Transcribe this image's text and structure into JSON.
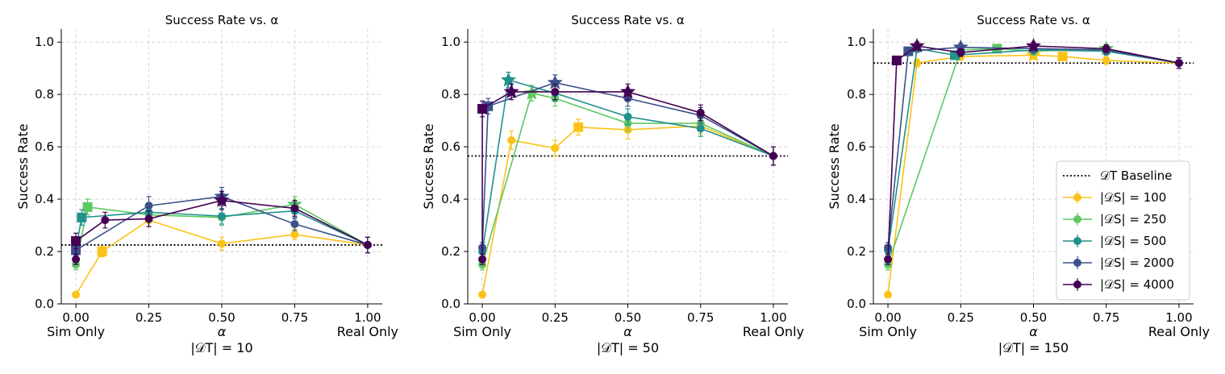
{
  "chart_data": [
    {
      "type": "line",
      "title": "Success Rate vs. α",
      "xlabel": "α",
      "sublabel": "|𝒟T| = 10",
      "ylabel": "Success Rate",
      "xlim": [
        -0.05,
        1.05
      ],
      "ylim": [
        0.0,
        1.05
      ],
      "xticks": [
        0.0,
        0.25,
        0.5,
        0.75,
        1.0
      ],
      "xtick_labels": [
        "0.00",
        "0.25",
        "0.50",
        "0.75",
        "1.00"
      ],
      "yticks": [
        0.0,
        0.2,
        0.4,
        0.6,
        0.8,
        1.0
      ],
      "ytick_labels": [
        "0.0",
        "0.2",
        "0.4",
        "0.6",
        "0.8",
        "1.0"
      ],
      "x_end_labels": [
        "Sim Only",
        "Real Only"
      ],
      "baseline": 0.225,
      "series": [
        {
          "name": "|𝒟S| = 100",
          "color": "#fbc318",
          "points": [
            {
              "x": 0.0,
              "y": 0.035,
              "e": 0.01,
              "m": "o"
            },
            {
              "x": 0.09,
              "y": 0.2,
              "e": 0.02,
              "m": "s"
            },
            {
              "x": 0.25,
              "y": 0.32,
              "e": 0.025,
              "m": "o"
            },
            {
              "x": 0.5,
              "y": 0.23,
              "e": 0.025,
              "m": "o"
            },
            {
              "x": 0.75,
              "y": 0.265,
              "e": 0.02,
              "m": "o"
            },
            {
              "x": 1.0,
              "y": 0.225,
              "e": 0.03,
              "m": "o"
            }
          ]
        },
        {
          "name": "|𝒟S| = 250",
          "color": "#5ec962",
          "points": [
            {
              "x": 0.0,
              "y": 0.15,
              "e": 0.02,
              "m": "o"
            },
            {
              "x": 0.04,
              "y": 0.37,
              "e": 0.03,
              "m": "s"
            },
            {
              "x": 0.25,
              "y": 0.34,
              "e": 0.03,
              "m": "o"
            },
            {
              "x": 0.5,
              "y": 0.33,
              "e": 0.03,
              "m": "o"
            },
            {
              "x": 0.75,
              "y": 0.38,
              "e": 0.03,
              "m": "*"
            },
            {
              "x": 1.0,
              "y": 0.225,
              "e": 0.03,
              "m": "o"
            }
          ]
        },
        {
          "name": "|𝒟S| = 500",
          "color": "#21918c",
          "points": [
            {
              "x": 0.0,
              "y": 0.21,
              "e": 0.02,
              "m": "o"
            },
            {
              "x": 0.02,
              "y": 0.33,
              "e": 0.03,
              "m": "s"
            },
            {
              "x": 0.25,
              "y": 0.35,
              "e": 0.03,
              "m": "o"
            },
            {
              "x": 0.5,
              "y": 0.335,
              "e": 0.03,
              "m": "o"
            },
            {
              "x": 0.75,
              "y": 0.355,
              "e": 0.03,
              "m": "o"
            },
            {
              "x": 1.0,
              "y": 0.225,
              "e": 0.03,
              "m": "o"
            }
          ]
        },
        {
          "name": "|𝒟S| = 2000",
          "color": "#3b528b",
          "points": [
            {
              "x": 0.0,
              "y": 0.205,
              "e": 0.02,
              "m": "s"
            },
            {
              "x": 0.25,
              "y": 0.375,
              "e": 0.035,
              "m": "o"
            },
            {
              "x": 0.5,
              "y": 0.41,
              "e": 0.035,
              "m": "*"
            },
            {
              "x": 0.75,
              "y": 0.305,
              "e": 0.025,
              "m": "o"
            },
            {
              "x": 1.0,
              "y": 0.225,
              "e": 0.03,
              "m": "o"
            }
          ]
        },
        {
          "name": "|𝒟S| = 4000",
          "color": "#440154",
          "points": [
            {
              "x": 0.0,
              "y": 0.17,
              "e": 0.02,
              "m": "o"
            },
            {
              "x": 0.0,
              "y": 0.24,
              "e": 0.03,
              "m": "s"
            },
            {
              "x": 0.1,
              "y": 0.32,
              "e": 0.03,
              "m": "o"
            },
            {
              "x": 0.25,
              "y": 0.325,
              "e": 0.03,
              "m": "o"
            },
            {
              "x": 0.5,
              "y": 0.395,
              "e": 0.035,
              "m": "*"
            },
            {
              "x": 0.75,
              "y": 0.365,
              "e": 0.03,
              "m": "o"
            },
            {
              "x": 1.0,
              "y": 0.225,
              "e": 0.03,
              "m": "o"
            }
          ]
        }
      ]
    },
    {
      "type": "line",
      "title": "Success Rate vs. α",
      "xlabel": "α",
      "sublabel": "|𝒟T| = 50",
      "ylabel": "Success Rate",
      "xlim": [
        -0.05,
        1.05
      ],
      "ylim": [
        0.0,
        1.05
      ],
      "xticks": [
        0.0,
        0.25,
        0.5,
        0.75,
        1.0
      ],
      "xtick_labels": [
        "0.00",
        "0.25",
        "0.50",
        "0.75",
        "1.00"
      ],
      "yticks": [
        0.0,
        0.2,
        0.4,
        0.6,
        0.8,
        1.0
      ],
      "ytick_labels": [
        "0.0",
        "0.2",
        "0.4",
        "0.6",
        "0.8",
        "1.0"
      ],
      "x_end_labels": [
        "Sim Only",
        "Real Only"
      ],
      "baseline": 0.565,
      "series": [
        {
          "name": "|𝒟S| = 100",
          "color": "#fbc318",
          "points": [
            {
              "x": 0.0,
              "y": 0.035,
              "e": 0.01,
              "m": "o"
            },
            {
              "x": 0.1,
              "y": 0.625,
              "e": 0.035,
              "m": "o"
            },
            {
              "x": 0.25,
              "y": 0.595,
              "e": 0.03,
              "m": "o"
            },
            {
              "x": 0.33,
              "y": 0.675,
              "e": 0.03,
              "m": "s"
            },
            {
              "x": 0.5,
              "y": 0.665,
              "e": 0.035,
              "m": "o"
            },
            {
              "x": 0.75,
              "y": 0.68,
              "e": 0.03,
              "m": "o"
            },
            {
              "x": 1.0,
              "y": 0.565,
              "e": 0.035,
              "m": "o"
            }
          ]
        },
        {
          "name": "|𝒟S| = 250",
          "color": "#5ec962",
          "points": [
            {
              "x": 0.0,
              "y": 0.15,
              "e": 0.02,
              "m": "o"
            },
            {
              "x": 0.17,
              "y": 0.805,
              "e": 0.03,
              "m": "*"
            },
            {
              "x": 0.25,
              "y": 0.785,
              "e": 0.03,
              "m": "o"
            },
            {
              "x": 0.5,
              "y": 0.69,
              "e": 0.03,
              "m": "o"
            },
            {
              "x": 0.75,
              "y": 0.69,
              "e": 0.03,
              "m": "o"
            },
            {
              "x": 1.0,
              "y": 0.565,
              "e": 0.035,
              "m": "o"
            }
          ]
        },
        {
          "name": "|𝒟S| = 500",
          "color": "#21918c",
          "points": [
            {
              "x": 0.0,
              "y": 0.2,
              "e": 0.02,
              "m": "o"
            },
            {
              "x": 0.09,
              "y": 0.855,
              "e": 0.03,
              "m": "*"
            },
            {
              "x": 0.25,
              "y": 0.805,
              "e": 0.03,
              "m": "o"
            },
            {
              "x": 0.5,
              "y": 0.715,
              "e": 0.03,
              "m": "o"
            },
            {
              "x": 0.75,
              "y": 0.67,
              "e": 0.03,
              "m": "o"
            },
            {
              "x": 1.0,
              "y": 0.565,
              "e": 0.035,
              "m": "o"
            }
          ]
        },
        {
          "name": "|𝒟S| = 2000",
          "color": "#3b528b",
          "points": [
            {
              "x": 0.0,
              "y": 0.215,
              "e": 0.02,
              "m": "o"
            },
            {
              "x": 0.02,
              "y": 0.755,
              "e": 0.03,
              "m": "s"
            },
            {
              "x": 0.25,
              "y": 0.845,
              "e": 0.03,
              "m": "*"
            },
            {
              "x": 0.5,
              "y": 0.785,
              "e": 0.03,
              "m": "o"
            },
            {
              "x": 0.75,
              "y": 0.72,
              "e": 0.03,
              "m": "o"
            },
            {
              "x": 1.0,
              "y": 0.565,
              "e": 0.035,
              "m": "o"
            }
          ]
        },
        {
          "name": "|𝒟S| = 4000",
          "color": "#440154",
          "points": [
            {
              "x": 0.0,
              "y": 0.17,
              "e": 0.02,
              "m": "o"
            },
            {
              "x": 0.0,
              "y": 0.745,
              "e": 0.03,
              "m": "s"
            },
            {
              "x": 0.1,
              "y": 0.81,
              "e": 0.03,
              "m": "*"
            },
            {
              "x": 0.25,
              "y": 0.81,
              "e": 0.03,
              "m": "o"
            },
            {
              "x": 0.5,
              "y": 0.81,
              "e": 0.03,
              "m": "*"
            },
            {
              "x": 0.75,
              "y": 0.73,
              "e": 0.03,
              "m": "o"
            },
            {
              "x": 1.0,
              "y": 0.565,
              "e": 0.035,
              "m": "o"
            }
          ]
        }
      ]
    },
    {
      "type": "line",
      "title": "Success Rate vs. α",
      "xlabel": "α",
      "sublabel": "|𝒟T| = 150",
      "ylabel": "Success Rate",
      "xlim": [
        -0.05,
        1.05
      ],
      "ylim": [
        0.0,
        1.05
      ],
      "xticks": [
        0.0,
        0.25,
        0.5,
        0.75,
        1.0
      ],
      "xtick_labels": [
        "0.00",
        "0.25",
        "0.50",
        "0.75",
        "1.00"
      ],
      "yticks": [
        0.0,
        0.2,
        0.4,
        0.6,
        0.8,
        1.0
      ],
      "ytick_labels": [
        "0.0",
        "0.2",
        "0.4",
        "0.6",
        "0.8",
        "1.0"
      ],
      "x_end_labels": [
        "Sim Only",
        "Real Only"
      ],
      "baseline": 0.92,
      "legend_placement": "lower-right",
      "legend_baseline_label": "𝒟T Baseline",
      "series": [
        {
          "name": "|𝒟S| = 100",
          "color": "#fbc318",
          "points": [
            {
              "x": 0.0,
              "y": 0.035,
              "e": 0.01,
              "m": "o"
            },
            {
              "x": 0.1,
              "y": 0.92,
              "e": 0.015,
              "m": "o"
            },
            {
              "x": 0.25,
              "y": 0.945,
              "e": 0.015,
              "m": "o"
            },
            {
              "x": 0.5,
              "y": 0.95,
              "e": 0.015,
              "m": "*"
            },
            {
              "x": 0.6,
              "y": 0.945,
              "e": 0.015,
              "m": "s"
            },
            {
              "x": 0.75,
              "y": 0.93,
              "e": 0.015,
              "m": "o"
            },
            {
              "x": 1.0,
              "y": 0.92,
              "e": 0.02,
              "m": "o"
            }
          ]
        },
        {
          "name": "|𝒟S| = 250",
          "color": "#5ec962",
          "points": [
            {
              "x": 0.0,
              "y": 0.15,
              "e": 0.02,
              "m": "o"
            },
            {
              "x": 0.25,
              "y": 0.97,
              "e": 0.015,
              "m": "o"
            },
            {
              "x": 0.375,
              "y": 0.975,
              "e": 0.015,
              "m": "s"
            },
            {
              "x": 0.5,
              "y": 0.965,
              "e": 0.015,
              "m": "o"
            },
            {
              "x": 0.75,
              "y": 0.975,
              "e": 0.015,
              "m": "*"
            },
            {
              "x": 1.0,
              "y": 0.92,
              "e": 0.02,
              "m": "o"
            }
          ]
        },
        {
          "name": "|𝒟S| = 500",
          "color": "#21918c",
          "points": [
            {
              "x": 0.0,
              "y": 0.205,
              "e": 0.02,
              "m": "o"
            },
            {
              "x": 0.1,
              "y": 0.975,
              "e": 0.015,
              "m": "o"
            },
            {
              "x": 0.23,
              "y": 0.95,
              "e": 0.015,
              "m": "s"
            },
            {
              "x": 0.5,
              "y": 0.97,
              "e": 0.015,
              "m": "o"
            },
            {
              "x": 0.75,
              "y": 0.965,
              "e": 0.015,
              "m": "o"
            },
            {
              "x": 1.0,
              "y": 0.92,
              "e": 0.02,
              "m": "o"
            }
          ]
        },
        {
          "name": "|𝒟S| = 2000",
          "color": "#3b528b",
          "points": [
            {
              "x": 0.0,
              "y": 0.215,
              "e": 0.02,
              "m": "o"
            },
            {
              "x": 0.07,
              "y": 0.965,
              "e": 0.015,
              "m": "s"
            },
            {
              "x": 0.25,
              "y": 0.98,
              "e": 0.015,
              "m": "*"
            },
            {
              "x": 0.5,
              "y": 0.975,
              "e": 0.015,
              "m": "o"
            },
            {
              "x": 0.75,
              "y": 0.97,
              "e": 0.015,
              "m": "o"
            },
            {
              "x": 1.0,
              "y": 0.92,
              "e": 0.02,
              "m": "o"
            }
          ]
        },
        {
          "name": "|𝒟S| = 4000",
          "color": "#440154",
          "points": [
            {
              "x": 0.0,
              "y": 0.17,
              "e": 0.02,
              "m": "o"
            },
            {
              "x": 0.03,
              "y": 0.93,
              "e": 0.015,
              "m": "s"
            },
            {
              "x": 0.1,
              "y": 0.985,
              "e": 0.015,
              "m": "*"
            },
            {
              "x": 0.25,
              "y": 0.96,
              "e": 0.015,
              "m": "o"
            },
            {
              "x": 0.5,
              "y": 0.985,
              "e": 0.015,
              "m": "*"
            },
            {
              "x": 0.75,
              "y": 0.975,
              "e": 0.015,
              "m": "o"
            },
            {
              "x": 1.0,
              "y": 0.92,
              "e": 0.02,
              "m": "o"
            }
          ]
        }
      ]
    }
  ]
}
